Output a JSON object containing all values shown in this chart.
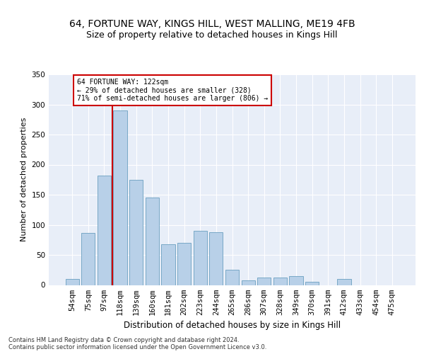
{
  "title1": "64, FORTUNE WAY, KINGS HILL, WEST MALLING, ME19 4FB",
  "title2": "Size of property relative to detached houses in Kings Hill",
  "xlabel": "Distribution of detached houses by size in Kings Hill",
  "ylabel": "Number of detached properties",
  "categories": [
    "54sqm",
    "75sqm",
    "97sqm",
    "118sqm",
    "139sqm",
    "160sqm",
    "181sqm",
    "202sqm",
    "223sqm",
    "244sqm",
    "265sqm",
    "286sqm",
    "307sqm",
    "328sqm",
    "349sqm",
    "370sqm",
    "391sqm",
    "412sqm",
    "433sqm",
    "454sqm",
    "475sqm"
  ],
  "values": [
    10,
    87,
    182,
    290,
    175,
    145,
    68,
    70,
    90,
    88,
    25,
    8,
    12,
    12,
    15,
    5,
    0,
    10,
    0,
    0,
    0
  ],
  "bar_color": "#b8d0e8",
  "bar_edge_color": "#6a9fc0",
  "vline_color": "#cc0000",
  "annotation_text": "64 FORTUNE WAY: 122sqm\n← 29% of detached houses are smaller (328)\n71% of semi-detached houses are larger (806) →",
  "annotation_box_color": "white",
  "annotation_box_edge": "#cc0000",
  "footer": "Contains HM Land Registry data © Crown copyright and database right 2024.\nContains public sector information licensed under the Open Government Licence v3.0.",
  "bg_color": "#e8eef8",
  "ylim": [
    0,
    350
  ],
  "yticks": [
    0,
    50,
    100,
    150,
    200,
    250,
    300,
    350
  ],
  "title1_fontsize": 10,
  "title2_fontsize": 9,
  "xlabel_fontsize": 8.5,
  "ylabel_fontsize": 8,
  "tick_fontsize": 7.5,
  "footer_fontsize": 6,
  "vline_pos": 3.5
}
